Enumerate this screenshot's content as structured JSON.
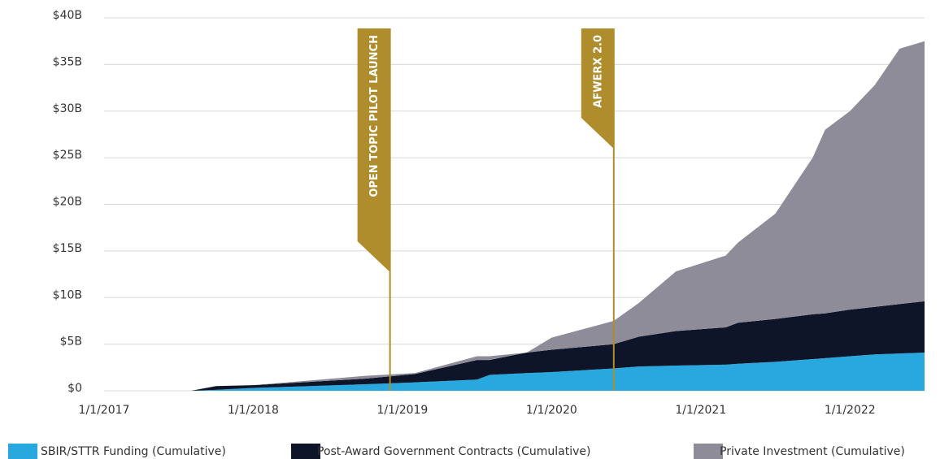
{
  "chart_data": {
    "type": "stacked_area",
    "x": [
      "2017-08",
      "2017-10",
      "2018-01",
      "2018-10",
      "2019-02",
      "2019-07",
      "2019-08",
      "2019-11",
      "2020-01",
      "2020-06",
      "2020-08",
      "2020-11",
      "2021-03",
      "2021-04",
      "2021-07",
      "2021-10",
      "2021-11",
      "2022-01",
      "2022-03",
      "2022-05",
      "2022-07"
    ],
    "series": [
      {
        "name": "SBIR/STTR Funding (Cumulative)",
        "color": "#29a8e0",
        "values": [
          0,
          0.1,
          0.3,
          0.7,
          0.9,
          1.2,
          1.7,
          1.9,
          2.0,
          2.4,
          2.6,
          2.7,
          2.8,
          2.9,
          3.1,
          3.4,
          3.5,
          3.7,
          3.9,
          4.0,
          4.1
        ]
      },
      {
        "name": "Post-Award Government Contracts (Cumulative)",
        "color": "#0f1529",
        "values": [
          0,
          0.4,
          0.3,
          0.6,
          0.9,
          2.1,
          1.6,
          2.2,
          2.4,
          2.6,
          3.2,
          3.7,
          4.0,
          4.4,
          4.6,
          4.8,
          4.8,
          5.0,
          5.1,
          5.3,
          5.5
        ]
      },
      {
        "name": "Private Investment (Cumulative)",
        "color": "#8e8c99",
        "values": [
          0,
          0,
          0,
          0.3,
          0.1,
          0.4,
          0.4,
          0,
          1.3,
          2.5,
          3.6,
          6.4,
          7.7,
          8.6,
          11.3,
          16.8,
          19.7,
          21.3,
          23.8,
          27.4,
          27.9
        ]
      }
    ],
    "xlim": [
      "2017-01",
      "2022-07"
    ],
    "xticks": [
      {
        "value": "2017-01",
        "label": "1/1/2017"
      },
      {
        "value": "2018-01",
        "label": "1/1/2018"
      },
      {
        "value": "2019-01",
        "label": "1/1/2019"
      },
      {
        "value": "2020-01",
        "label": "1/1/2020"
      },
      {
        "value": "2021-01",
        "label": "1/1/2021"
      },
      {
        "value": "2022-01",
        "label": "1/1/2022"
      }
    ],
    "ylim": [
      0,
      40
    ],
    "yticks": [
      {
        "value": 0,
        "label": "$0"
      },
      {
        "value": 5,
        "label": "$5B"
      },
      {
        "value": 10,
        "label": "$10B"
      },
      {
        "value": 15,
        "label": "$15B"
      },
      {
        "value": 20,
        "label": "$20B"
      },
      {
        "value": 25,
        "label": "$25B"
      },
      {
        "value": 30,
        "label": "$30B"
      },
      {
        "value": 35,
        "label": "$35B"
      },
      {
        "value": 40,
        "label": "$40B"
      }
    ],
    "grid": true,
    "annotations": [
      {
        "x": "2018-12",
        "label": "OPEN TOPIC PILOT LAUNCH",
        "color": "#b08d2c"
      },
      {
        "x": "2020-06",
        "label": "AFWERX 2.0",
        "color": "#b08d2c"
      }
    ]
  }
}
